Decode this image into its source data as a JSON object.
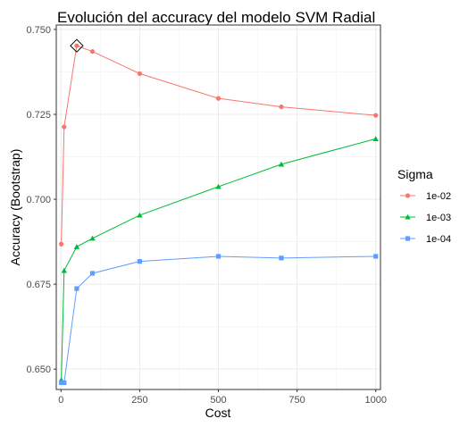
{
  "chart_data": {
    "type": "line",
    "title": "Evolución del accuracy del modelo SVM Radial",
    "xlabel": "Cost",
    "ylabel": "Accuracy (Bootstrap)",
    "xlim": [
      -15,
      1015
    ],
    "ylim": [
      0.644,
      0.7513
    ],
    "x_ticks": [
      0,
      250,
      500,
      750,
      1000
    ],
    "x_tick_labels": [
      "0",
      "250",
      "500",
      "750",
      "1000"
    ],
    "y_ticks": [
      0.65,
      0.675,
      0.7,
      0.725,
      0.75
    ],
    "y_tick_labels": [
      "0.650",
      "0.675",
      "0.700",
      "0.725",
      "0.750"
    ],
    "grid": true,
    "legend": {
      "title": "Sigma",
      "position": "right"
    },
    "series": [
      {
        "name": "1e-02",
        "color": "#F8766D",
        "marker": "circle",
        "x": [
          1,
          10,
          50,
          100,
          250,
          500,
          700,
          1000
        ],
        "y": [
          0.6868,
          0.7213,
          0.7452,
          0.7435,
          0.737,
          0.7297,
          0.7272,
          0.7247
        ]
      },
      {
        "name": "1e-03",
        "color": "#00BA38",
        "marker": "triangle",
        "x": [
          1,
          10,
          50,
          100,
          250,
          500,
          700,
          1000
        ],
        "y": [
          0.6468,
          0.679,
          0.686,
          0.6885,
          0.6953,
          0.7037,
          0.7103,
          0.7178
        ]
      },
      {
        "name": "1e-04",
        "color": "#619CFF",
        "marker": "square",
        "x": [
          1,
          10,
          50,
          100,
          250,
          500,
          700,
          1000
        ],
        "y": [
          0.646,
          0.646,
          0.6737,
          0.6782,
          0.6817,
          0.6832,
          0.6827,
          0.6832
        ]
      }
    ],
    "highlight": {
      "x": 50,
      "y": 0.7452,
      "marker": "diamond"
    }
  }
}
